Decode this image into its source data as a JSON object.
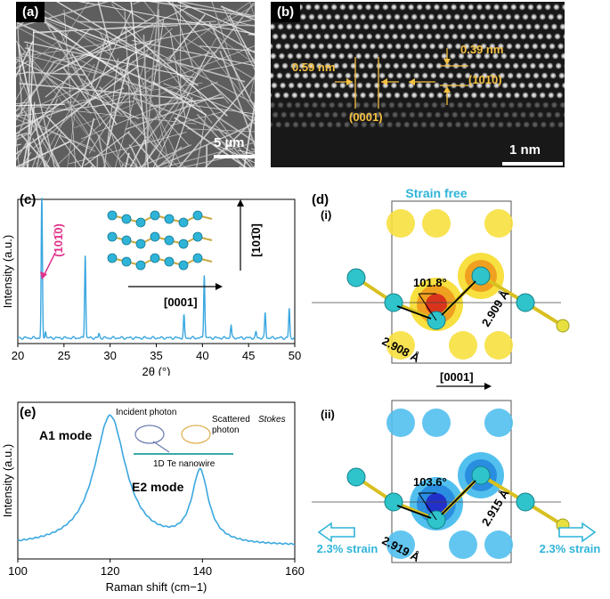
{
  "panel_a": {
    "label": "(a)",
    "scale_bar": "5 µm"
  },
  "panel_b": {
    "label": "(b)",
    "spacing_0001": "0.59 nm",
    "plane_0001": "(0001)",
    "spacing_1010": "0.39 nm",
    "plane_1010": "(101̄0)",
    "scale_bar": "1 nm"
  },
  "panel_c": {
    "label": "(c)",
    "peak_label": "(101̄0)",
    "direction_vertical": "[101̄0]",
    "direction_horizontal": "[0001]",
    "chart_data": {
      "type": "line",
      "xlabel": "2θ (°)",
      "ylabel": "Intensity (a.u.)",
      "xlim": [
        20,
        50
      ],
      "x_ticks": [
        20,
        25,
        30,
        35,
        40,
        45,
        50
      ],
      "peaks": [
        {
          "x": 22.6,
          "y": 1.0
        },
        {
          "x": 23.0,
          "y": 0.05
        },
        {
          "x": 27.3,
          "y": 0.6
        },
        {
          "x": 28.8,
          "y": 0.03
        },
        {
          "x": 38.0,
          "y": 0.16
        },
        {
          "x": 40.2,
          "y": 0.46
        },
        {
          "x": 43.1,
          "y": 0.09
        },
        {
          "x": 45.8,
          "y": 0.04
        },
        {
          "x": 46.8,
          "y": 0.18
        },
        {
          "x": 49.4,
          "y": 0.21
        }
      ],
      "color": "#3aa7e0"
    }
  },
  "panel_d": {
    "label": "(d)",
    "title_top": "Strain free",
    "sub_i": "(i)",
    "angle_i": "101.8°",
    "bond_i_left": "2.908 Å",
    "bond_i_right": "2.909 Å",
    "direction": "[0001]",
    "sub_ii": "(ii)",
    "angle_ii": "103.6°",
    "bond_ii_left": "2.919 Å",
    "bond_ii_right": "2.915 Å",
    "strain_left": "2.3% strain",
    "strain_right": "2.3% strain"
  },
  "panel_e": {
    "label": "(e)",
    "incident": "Incident photon",
    "scattered_1": "Scattered",
    "scattered_2": "Stokes",
    "scattered_3": "photon",
    "nanowire": "1D Te nanowire",
    "mode_a1": "A1 mode",
    "mode_e2": "E2 mode",
    "chart_data": {
      "type": "line",
      "xlabel": "Raman shift (cm−1)",
      "ylabel": "Intensity (a.u.)",
      "xlim": [
        100,
        160
      ],
      "x_ticks": [
        100,
        120,
        140,
        160
      ],
      "peaks": [
        {
          "x": 120.0,
          "amp": 1.0,
          "width": 4.2
        },
        {
          "x": 139.5,
          "amp": 0.55,
          "width": 2.2
        }
      ],
      "baseline": 0.07,
      "color": "#3aa7e0"
    }
  },
  "colors": {
    "orange": "#f5c040",
    "cyan": "#2fb4d8",
    "line": "#3aa7e0",
    "magenta": "#e0308a"
  }
}
